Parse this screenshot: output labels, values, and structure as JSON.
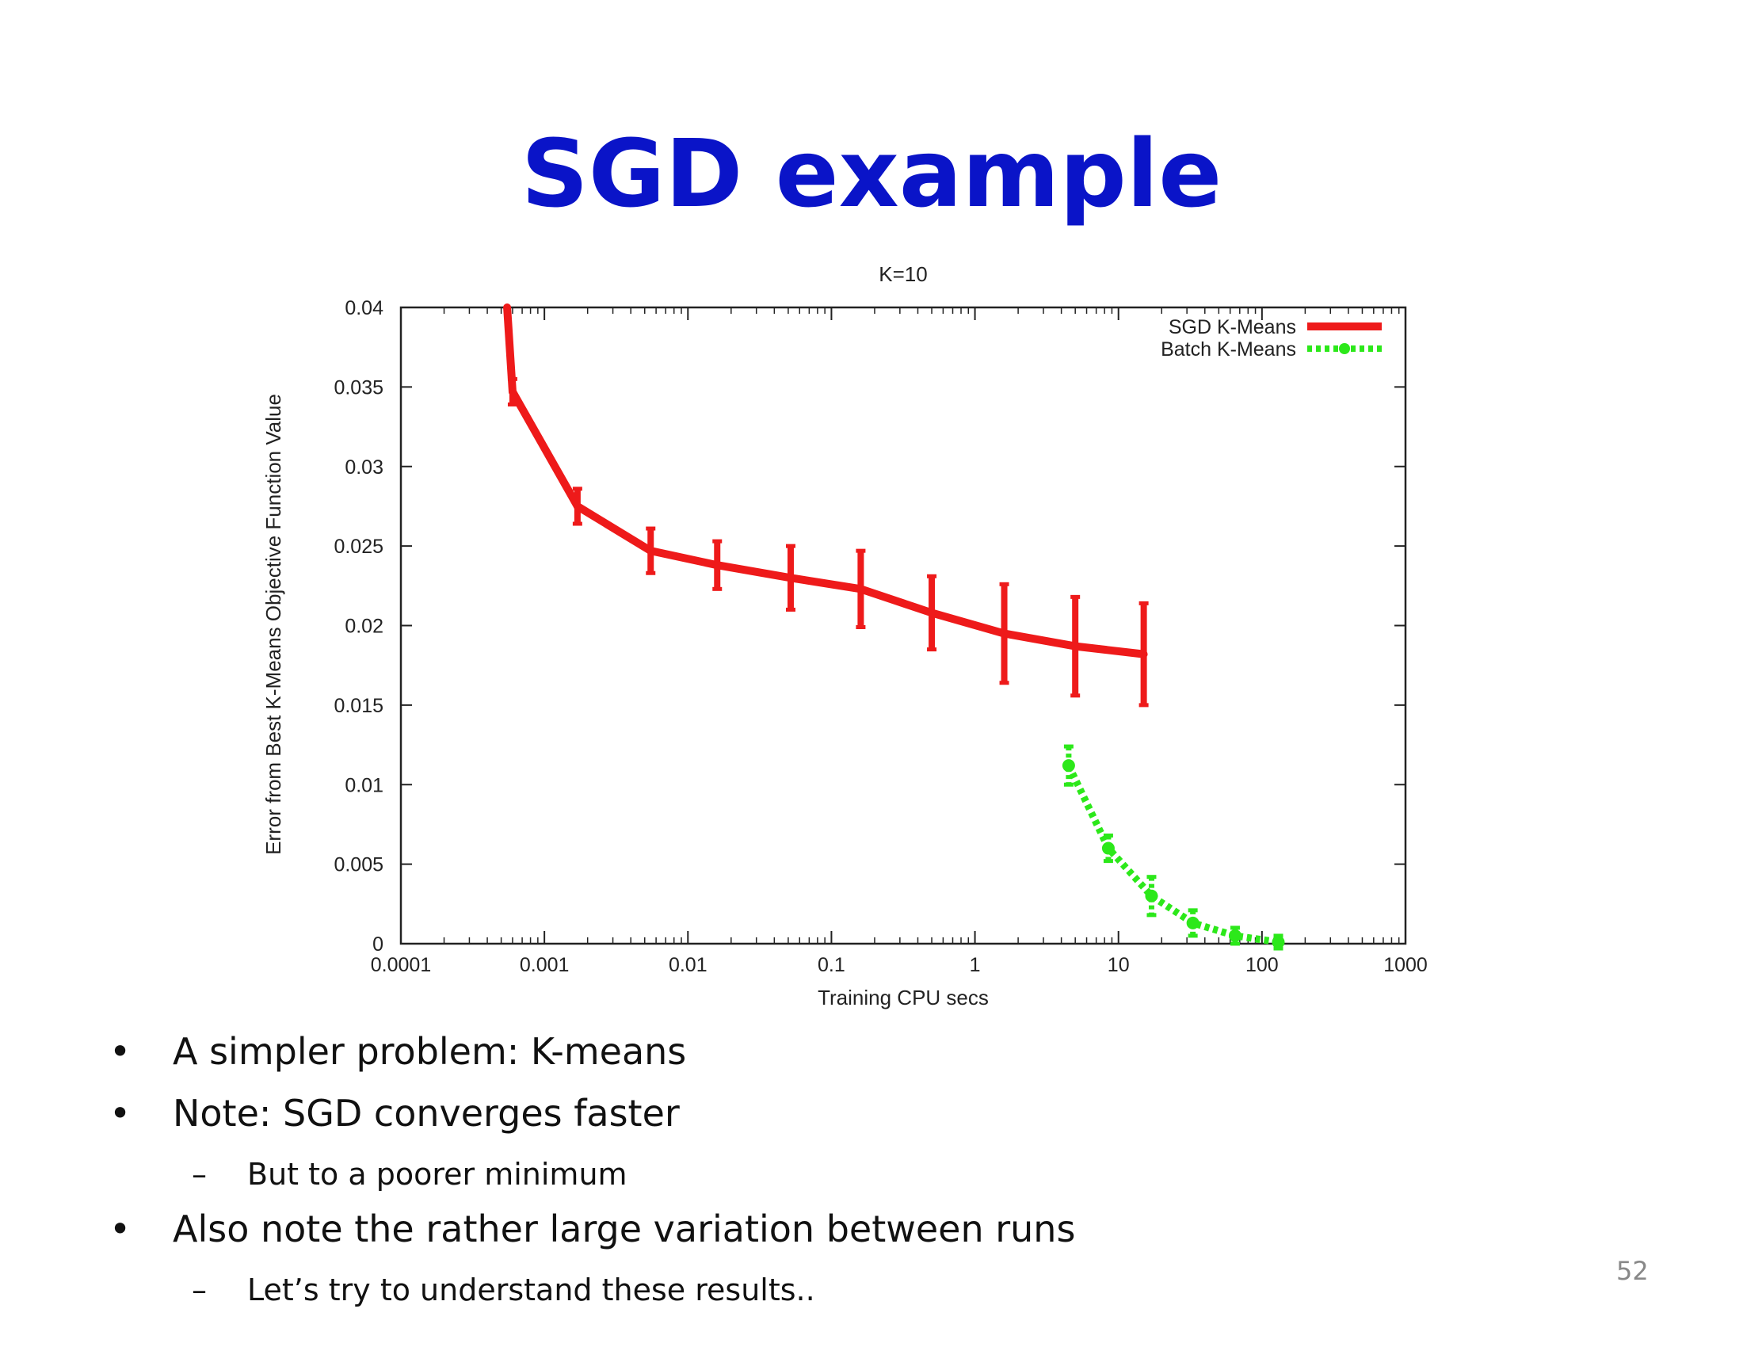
{
  "slide": {
    "title": "SGD example",
    "page_number": "52",
    "bullets": [
      {
        "mark": "•",
        "text": "A simpler problem: K-means"
      },
      {
        "mark": "•",
        "text": "Note: SGD converges faster"
      },
      {
        "mark": "–",
        "text": "But to a poorer minimum"
      },
      {
        "mark": "•",
        "text": "Also note the rather large variation between runs"
      },
      {
        "mark": "–",
        "text": "Let’s try to understand these results.."
      }
    ]
  },
  "colors": {
    "title": "#0a14c8",
    "sgd": "#ee1a1a",
    "batch": "#2ce81a"
  },
  "chart_data": {
    "type": "line",
    "title": "K=10",
    "xlabel": "Training CPU secs",
    "ylabel": "Error from Best K-Means Objective Function Value",
    "xscale": "log",
    "xlim": [
      0.0001,
      1000
    ],
    "ylim": [
      0,
      0.04
    ],
    "xticks": [
      "0.0001",
      "0.001",
      "0.01",
      "0.1",
      "1",
      "10",
      "100",
      "1000"
    ],
    "yticks": [
      "0",
      "0.005",
      "0.01",
      "0.015",
      "0.02",
      "0.025",
      "0.03",
      "0.035",
      "0.04"
    ],
    "legend_position": "top-right",
    "grid": false,
    "series": [
      {
        "name": "SGD K-Means",
        "x": [
          0.00055,
          0.0006,
          0.0017,
          0.0055,
          0.016,
          0.052,
          0.16,
          0.5,
          1.6,
          5.0,
          15.0
        ],
        "y": [
          0.04,
          0.0347,
          0.0275,
          0.0247,
          0.0238,
          0.023,
          0.0223,
          0.0208,
          0.0195,
          0.0187,
          0.0182
        ],
        "err": [
          0,
          0.0008,
          0.0011,
          0.0014,
          0.0015,
          0.002,
          0.0024,
          0.0023,
          0.0031,
          0.0031,
          0.0032
        ]
      },
      {
        "name": "Batch K-Means",
        "x": [
          4.5,
          8.5,
          17,
          33,
          65,
          130
        ],
        "y": [
          0.0112,
          0.006,
          0.003,
          0.0013,
          0.0005,
          0.0001
        ],
        "err": [
          0.0012,
          0.0008,
          0.0012,
          0.0008,
          0.0005,
          0.0004
        ]
      }
    ]
  }
}
